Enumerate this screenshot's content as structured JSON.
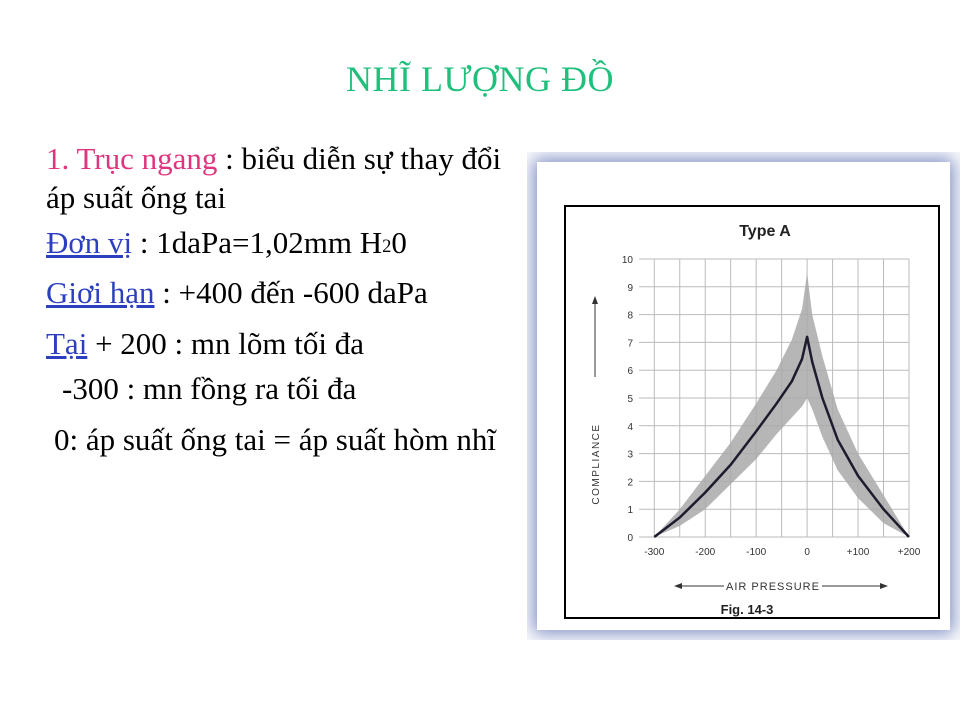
{
  "title": "NHĨ LƯỢNG ĐỒ",
  "body": {
    "p1_label": "1. Trục ngang",
    "p1_text": " : biểu diễn sự thay đổi áp suất ống tai",
    "p2_label": "Đơn vị",
    "p2_text_a": " : 1daPa=1,02mm H",
    "p2_sub": "2",
    "p2_text_b": "0",
    "p3_label": "Giơi hạn",
    "p3_text": " : +400 đến -600 daPa",
    "p4_label": "Tại",
    "p4_text": " + 200 : mn lõm tối đa",
    "p5_text": "-300 : mn fồng ra tối đa",
    "p6_text": "0: áp suất ống tai = áp suất hòm nhĩ"
  },
  "figure": {
    "caption": "Fig. 14-3",
    "chart_data": {
      "type": "area",
      "title": "Type A",
      "xlabel": "AIR PRESSURE",
      "ylabel": "COMPLIANCE",
      "x_ticks": [
        "-300",
        "-200",
        "-100",
        "0",
        "+100",
        "+200"
      ],
      "y_ticks": [
        "0",
        "1",
        "2",
        "3",
        "4",
        "5",
        "6",
        "7",
        "8",
        "9",
        "10"
      ],
      "xlim": [
        -330,
        200
      ],
      "ylim": [
        0,
        10
      ],
      "grid": true,
      "series": [
        {
          "role": "mean",
          "x": [
            -300,
            -250,
            -200,
            -150,
            -100,
            -60,
            -30,
            -10,
            0,
            10,
            30,
            60,
            100,
            150,
            200
          ],
          "y": [
            0,
            0.7,
            1.6,
            2.6,
            3.8,
            4.8,
            5.6,
            6.4,
            7.2,
            6.3,
            5.0,
            3.5,
            2.2,
            1.0,
            0
          ]
        },
        {
          "role": "upper",
          "x": [
            -300,
            -250,
            -200,
            -150,
            -100,
            -60,
            -30,
            -10,
            0,
            10,
            30,
            60,
            100,
            150,
            200
          ],
          "y": [
            0,
            1.0,
            2.2,
            3.4,
            4.8,
            6.0,
            7.1,
            8.2,
            9.5,
            8.0,
            6.5,
            4.6,
            3.0,
            1.5,
            0
          ]
        },
        {
          "role": "lower",
          "x": [
            -300,
            -250,
            -200,
            -150,
            -100,
            -60,
            -30,
            -10,
            0,
            10,
            30,
            60,
            100,
            150,
            200
          ],
          "y": [
            0,
            0.4,
            1.0,
            1.9,
            2.8,
            3.7,
            4.3,
            4.7,
            5.0,
            4.6,
            3.6,
            2.4,
            1.4,
            0.5,
            0
          ]
        }
      ]
    }
  },
  "colors": {
    "title": "#1fbf7c",
    "pink": "#e0357e",
    "blue": "#2d3fc1",
    "frame": "#7f8fc4",
    "band": "#a9a9a9"
  }
}
